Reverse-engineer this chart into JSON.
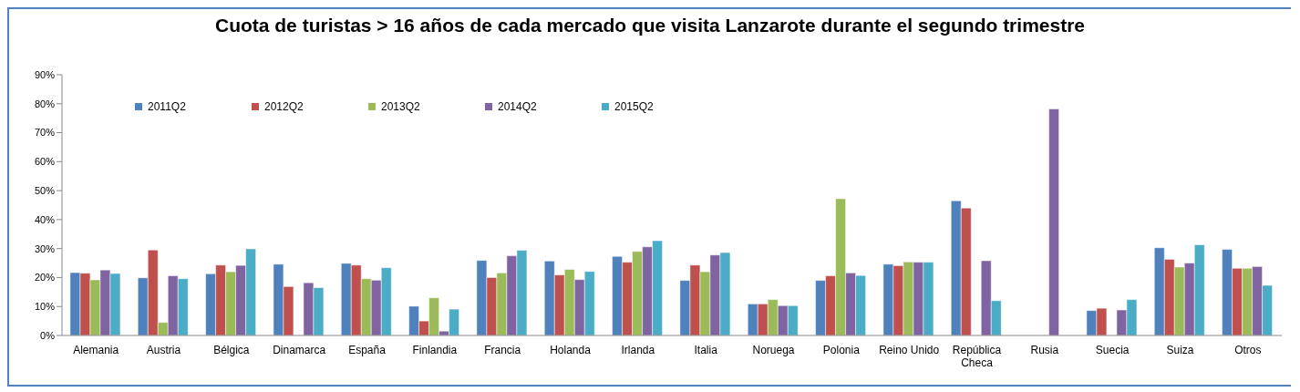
{
  "chart_data": {
    "type": "bar",
    "title": "Cuota de turistas > 16 años de cada mercado que visita Lanzarote durante el segundo trimestre",
    "categories": [
      "Alemania",
      "Austria",
      "Bélgica",
      "Dinamarca",
      "España",
      "Finlandia",
      "Francia",
      "Holanda",
      "Irlanda",
      "Italia",
      "Noruega",
      "Polonia",
      "Reino Unido",
      "República Checa",
      "Rusia",
      "Suecia",
      "Suiza",
      "Otros"
    ],
    "series": [
      {
        "name": "2011Q2",
        "color": "#4f81bd",
        "values": [
          21.7,
          19.9,
          21.3,
          24.6,
          24.9,
          10.1,
          25.9,
          25.7,
          27.3,
          19.0,
          10.9,
          19.0,
          24.6,
          46.5,
          null,
          8.6,
          30.3,
          29.7
        ]
      },
      {
        "name": "2012Q2",
        "color": "#c0504d",
        "values": [
          21.5,
          29.5,
          24.3,
          16.9,
          24.3,
          5.0,
          20.0,
          20.9,
          25.3,
          24.3,
          10.9,
          20.6,
          24.1,
          44.0,
          null,
          9.4,
          26.3,
          23.2
        ]
      },
      {
        "name": "2013Q2",
        "color": "#9bbb59",
        "values": [
          19.2,
          4.5,
          22.0,
          null,
          19.6,
          13.0,
          21.6,
          22.8,
          29.0,
          22.0,
          12.4,
          47.2,
          25.4,
          null,
          null,
          null,
          23.6,
          23.2
        ]
      },
      {
        "name": "2014Q2",
        "color": "#8064a2",
        "values": [
          22.6,
          20.6,
          24.2,
          18.2,
          19.1,
          1.5,
          27.5,
          19.3,
          30.6,
          27.8,
          10.3,
          21.6,
          25.3,
          25.8,
          78.2,
          8.8,
          25.0,
          23.8
        ]
      },
      {
        "name": "2015Q2",
        "color": "#4bacc6",
        "values": [
          21.4,
          19.6,
          29.9,
          16.5,
          23.4,
          9.1,
          29.4,
          22.1,
          32.7,
          28.6,
          10.3,
          20.7,
          25.3,
          12.0,
          null,
          12.4,
          31.3,
          17.3
        ]
      }
    ],
    "ylim": [
      0,
      90
    ],
    "yticks": [
      {
        "value": 0,
        "label": "0%"
      },
      {
        "value": 10,
        "label": "10%"
      },
      {
        "value": 20,
        "label": "20%"
      },
      {
        "value": 30,
        "label": "30%"
      },
      {
        "value": 40,
        "label": "40%"
      },
      {
        "value": 50,
        "label": "50%"
      },
      {
        "value": 60,
        "label": "60%"
      },
      {
        "value": 70,
        "label": "70%"
      },
      {
        "value": 80,
        "label": "80%"
      },
      {
        "value": 90,
        "label": "90%"
      }
    ],
    "grid": false,
    "legend": "top left"
  }
}
